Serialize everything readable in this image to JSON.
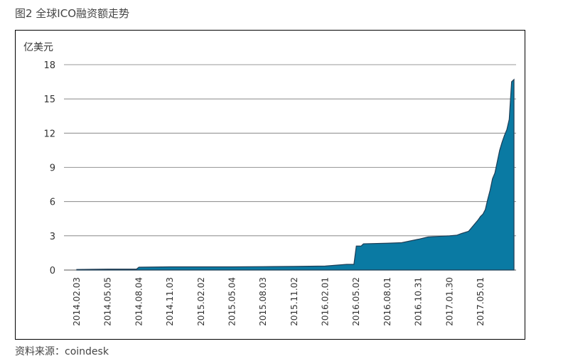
{
  "figure": {
    "title": "图2 全球ICO融资额走势",
    "source": "资料来源：coindesk"
  },
  "chart_data": {
    "type": "area",
    "title": "图2 全球ICO融资额走势",
    "ylabel": "亿美元",
    "xlabel": "",
    "ylim": [
      0,
      18
    ],
    "y_ticks": [
      0,
      3,
      6,
      9,
      12,
      15,
      18
    ],
    "grid": "horizontal",
    "legend": "none",
    "fill_color": "#0a7aa3",
    "stroke_color": "#1e3d55",
    "x_tick_labels": [
      "2014.02.03",
      "2014.05.05",
      "2014.08.04",
      "2014.11.03",
      "2015.02.02",
      "2015.05.04",
      "2015.08.03",
      "2015.11.02",
      "2016.02.01",
      "2016.05.02",
      "2016.08.01",
      "2016.10.31",
      "2017.01.30",
      "2017.05.01"
    ],
    "series": [
      {
        "x": [
          "2014.02.03",
          "2014.05.05",
          "2014.07.28",
          "2014.08.04",
          "2014.11.03",
          "2015.02.02",
          "2015.05.04",
          "2015.08.03",
          "2015.11.02",
          "2016.02.01",
          "2016.04.04",
          "2016.04.25",
          "2016.05.02",
          "2016.05.16",
          "2016.05.23",
          "2016.08.01",
          "2016.09.12",
          "2016.10.31",
          "2016.11.28",
          "2017.01.30",
          "2017.02.20",
          "2017.03.06",
          "2017.03.27",
          "2017.04.10",
          "2017.04.24",
          "2017.05.01",
          "2017.05.08",
          "2017.05.15",
          "2017.05.22",
          "2017.05.29",
          "2017.06.05",
          "2017.06.12",
          "2017.06.19",
          "2017.06.26",
          "2017.07.03",
          "2017.07.10",
          "2017.07.17",
          "2017.07.24",
          "2017.07.31",
          "2017.08.07"
        ],
        "values": [
          0.05,
          0.08,
          0.08,
          0.25,
          0.28,
          0.28,
          0.28,
          0.3,
          0.32,
          0.35,
          0.5,
          0.5,
          2.1,
          2.1,
          2.3,
          2.35,
          2.4,
          2.7,
          2.9,
          3.0,
          3.05,
          3.2,
          3.4,
          3.9,
          4.4,
          4.7,
          4.9,
          5.3,
          6.2,
          7.0,
          8.0,
          8.5,
          9.5,
          10.5,
          11.2,
          11.8,
          12.3,
          13.2,
          16.5,
          16.7
        ]
      }
    ]
  }
}
